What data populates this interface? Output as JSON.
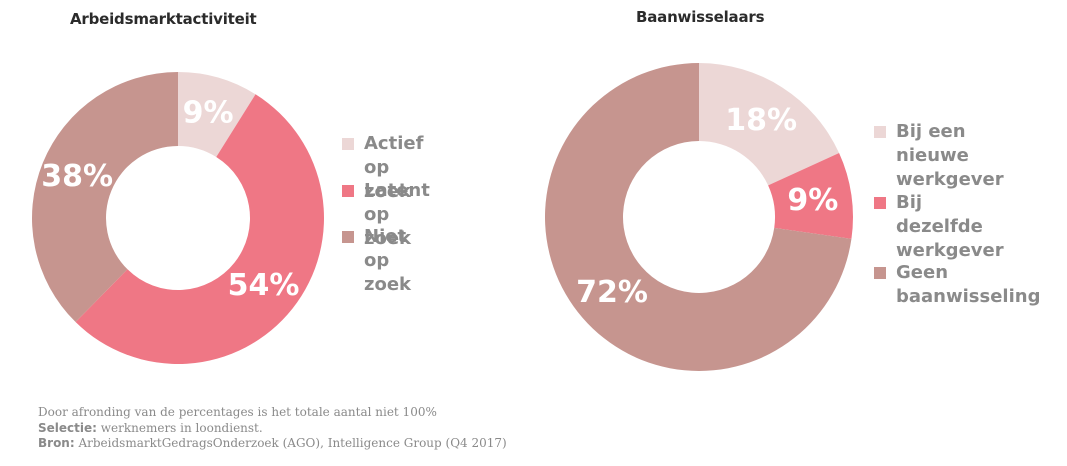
{
  "chart_data": [
    {
      "type": "pie",
      "title": "Arbeidsmarktactiviteit",
      "categories": [
        "Actief op zoek",
        "Latent op zoek",
        "Niet op zoek"
      ],
      "values": [
        9,
        54,
        38
      ],
      "labels": [
        "9%",
        "54%",
        "38%"
      ],
      "colors": [
        "#ecd7d6",
        "#ef7785",
        "#c6958f"
      ],
      "legend_position": "right"
    },
    {
      "type": "pie",
      "title": "Baanwisselaars",
      "categories": [
        "Bij een nieuwe\nwerkgever",
        "Bij dezelfde\nwerkgever",
        "Geen\nbaanwisseling"
      ],
      "values": [
        18,
        9,
        72
      ],
      "labels": [
        "18%",
        "9%",
        "72%"
      ],
      "colors": [
        "#ecd7d6",
        "#ef7785",
        "#c6958f"
      ],
      "legend_position": "right"
    }
  ],
  "footnote": {
    "line1": "Door afronding van de percentages is het totale aantal niet 100%",
    "selectie_label": "Selectie:",
    "selectie_text": " werknemers in loondienst.",
    "bron_label": "Bron:",
    "bron_text": " ArbeidsmarktGedragsOnderzoek (AGO), Intelligence Group (Q4 2017)"
  }
}
